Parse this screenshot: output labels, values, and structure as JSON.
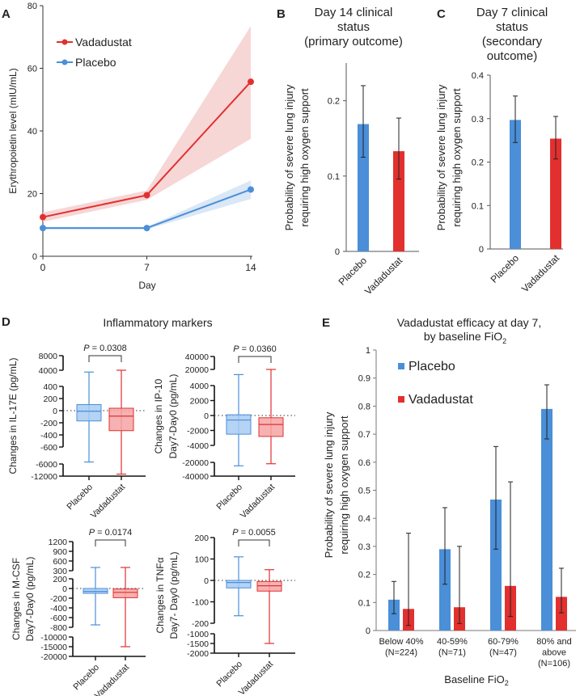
{
  "colors": {
    "placebo": "#4a8fd8",
    "vadadustat": "#e2302f",
    "placebo_box": "#a8cbf2",
    "vadadustat_box": "#f5a5a5"
  },
  "chart_data": [
    {
      "panel": "A",
      "type": "line",
      "xlabel": "Day",
      "ylabel": "Erythropoietin level (mIU/mL)",
      "x": [
        0,
        7,
        14
      ],
      "xticks": [
        "0",
        "7",
        "14"
      ],
      "ylim": [
        0,
        80
      ],
      "yticks": [
        "0",
        "20",
        "40",
        "60",
        "80"
      ],
      "legend": "top-left",
      "series": [
        {
          "name": "Vadadustat",
          "values": [
            12.5,
            19.5,
            55.7
          ],
          "ci_low": [
            11,
            18,
            37.5
          ],
          "ci_high": [
            14,
            21,
            73.5
          ]
        },
        {
          "name": "Placebo",
          "values": [
            9,
            9,
            21.3
          ],
          "ci_low": [
            8.6,
            8.6,
            18.3
          ],
          "ci_high": [
            9.4,
            9.4,
            24.2
          ]
        }
      ]
    },
    {
      "panel": "B",
      "type": "bar",
      "title": [
        "Day 14 clinical",
        "status",
        "(primary outcome)"
      ],
      "ylabel": [
        "Probability of severe lung injury",
        "requiring high oxygen support"
      ],
      "categories": [
        "Placebo",
        "Vadadustat"
      ],
      "values": [
        0.169,
        0.133
      ],
      "err_low": [
        0.125,
        0.096
      ],
      "err_high": [
        0.22,
        0.177
      ],
      "ylim": [
        0,
        0.25
      ],
      "yticks": [
        "0",
        "0.1",
        "0.2"
      ]
    },
    {
      "panel": "C",
      "type": "bar",
      "title": [
        "Day 7 clinical",
        "status",
        "(secondary",
        "outcome)"
      ],
      "ylabel": [
        "Probability of severe lung injury",
        "requiring high oxygen support"
      ],
      "categories": [
        "Placebo",
        "Vadadustat"
      ],
      "values": [
        0.297,
        0.254
      ],
      "err_low": [
        0.245,
        0.207
      ],
      "err_high": [
        0.352,
        0.305
      ],
      "ylim": [
        0,
        0.4
      ],
      "yticks": [
        "0",
        "0.1",
        "0.2",
        "0.3",
        "0.4"
      ]
    },
    {
      "panel": "D",
      "type": "box",
      "title": "Inflammatory markers",
      "categories": [
        "Placebo",
        "Vadadustat"
      ],
      "plots": [
        {
          "ylabel": [
            "Changes in IL-17E (pg/mL)"
          ],
          "p_value": "= 0.0308",
          "axis_segments": [
            [
              "-12000",
              "-6000"
            ],
            [
              "-600",
              "-400",
              "-200",
              "0",
              "200",
              "400"
            ],
            [
              "4000",
              "8000"
            ]
          ],
          "boxes": [
            {
              "min": -5000,
              "q1": -170,
              "median": -10,
              "q3": 100,
              "max": 3500
            },
            {
              "min": -11000,
              "q1": -330,
              "median": -90,
              "q3": 40,
              "max": 4000
            }
          ]
        },
        {
          "ylabel": [
            "Changes in IP-10",
            "Day7-Day0 (pg/mL)"
          ],
          "p_value": "= 0.0360",
          "axis_segments": [
            [
              "-40000",
              "-20000"
            ],
            [
              "-4000",
              "-2000",
              "0",
              "2000",
              "4000"
            ],
            [
              "20000",
              "40000"
            ]
          ],
          "boxes": [
            {
              "min": -25000,
              "q1": -2500,
              "median": -600,
              "q3": 100,
              "max": 12000
            },
            {
              "min": -22000,
              "q1": -2800,
              "median": -1200,
              "q3": -300,
              "max": 20000
            }
          ]
        },
        {
          "ylabel": [
            "Changes in M-CSF",
            "Day7-Day0 (pg/mL)"
          ],
          "p_value": "= 0.0174",
          "axis_segments": [
            [
              "-20000",
              "-15000",
              "-10000"
            ],
            [
              "-800",
              "-600",
              "-400",
              "-200",
              "0",
              "200"
            ],
            [
              "300",
              "600",
              "900",
              "1200"
            ]
          ],
          "boxes": [
            {
              "min": -750,
              "q1": -100,
              "median": -60,
              "q3": 0,
              "max": 400
            },
            {
              "min": -15000,
              "q1": -190,
              "median": -80,
              "q3": -10,
              "max": 400
            }
          ]
        },
        {
          "ylabel": [
            "Changes in TNFα",
            "Day7- Day0 (pg/mL)"
          ],
          "p_value": "= 0.0055",
          "axis_segments": [
            [
              "-2000",
              "-1500",
              "-1000"
            ],
            [
              "-200",
              "-100",
              "0",
              "100",
              "200"
            ]
          ],
          "boxes": [
            {
              "min": -165,
              "q1": -35,
              "median": -10,
              "q3": 0,
              "max": 110
            },
            {
              "min": -1500,
              "q1": -50,
              "median": -25,
              "q3": -5,
              "max": 50
            }
          ]
        }
      ]
    },
    {
      "panel": "E",
      "type": "bar",
      "title": [
        "Vadadustat efficacy at day 7,",
        "by baseline FiO",
        "2"
      ],
      "ylabel": [
        "Probability of severe lung injury",
        "requiring high oxygen support"
      ],
      "xlabel": [
        "Baseline FiO",
        "2"
      ],
      "categories": [
        [
          "Below 40%",
          "(N=224)"
        ],
        [
          "40-59%",
          "(N=71)"
        ],
        [
          "60-79%",
          "(N=47)"
        ],
        [
          "80% and",
          "above",
          "(N=106)"
        ]
      ],
      "ylim": [
        0,
        1
      ],
      "yticks": [
        "0",
        "0.1",
        "0.2",
        "0.3",
        "0.4",
        "0.5",
        "0.6",
        "0.7",
        "0.8",
        "0.9",
        "1"
      ],
      "legend": "top-left",
      "series": [
        {
          "name": "Placebo",
          "values": [
            0.11,
            0.29,
            0.467,
            0.79
          ],
          "err_low": [
            0.06,
            0.165,
            0.29,
            0.683
          ],
          "err_high": [
            0.175,
            0.438,
            0.656,
            0.876
          ]
        },
        {
          "name": "Vadadustat",
          "values": [
            0.077,
            0.083,
            0.159,
            0.12
          ],
          "err_low": [
            0.018,
            0.025,
            0.05,
            0.063
          ],
          "err_high": [
            0.347,
            0.3,
            0.53,
            0.222
          ]
        }
      ]
    }
  ],
  "p_symbol": "P"
}
